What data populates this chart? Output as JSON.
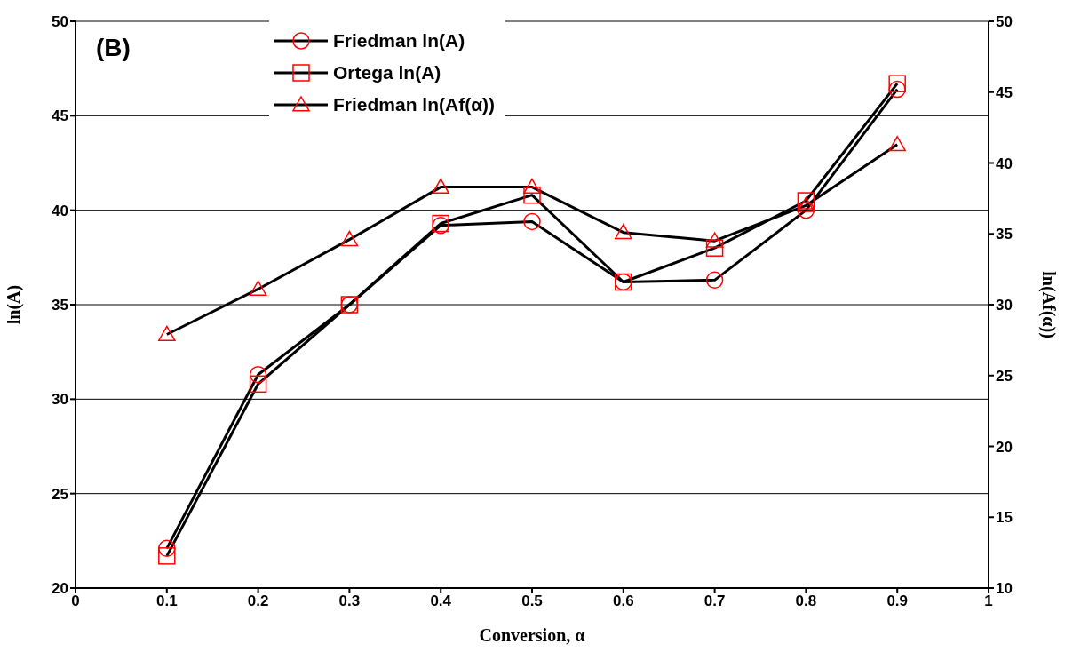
{
  "chart_data": {
    "type": "line",
    "xlabel": "Conversion, α",
    "ylabel": "ln(A)",
    "y2label": "ln(Af(α))",
    "annotations": [
      "(B)"
    ],
    "x": [
      0.1,
      0.2,
      0.3,
      0.4,
      0.5,
      0.6,
      0.7,
      0.8,
      0.9
    ],
    "series": [
      {
        "name": "Friedman ln(A)",
        "color": "#ff0000",
        "marker": "circle",
        "values": [
          22.1,
          31.3,
          35.0,
          39.2,
          39.4,
          36.2,
          36.3,
          40.0,
          46.4
        ]
      },
      {
        "name": "Ortega ln(A)",
        "color": "#ff0000",
        "marker": "square",
        "values": [
          21.7,
          30.8,
          35.0,
          39.3,
          40.8,
          36.2,
          38.0,
          40.5,
          46.7
        ]
      },
      {
        "name": "Friedman ln(Af(α))",
        "color": "#ff0000",
        "marker": "triangle",
        "axis": "y2",
        "values": [
          27.9,
          31.1,
          34.6,
          38.3,
          38.3,
          35.1,
          34.5,
          37.0,
          41.3
        ]
      }
    ],
    "xlim": [
      0,
      1
    ],
    "xticks": [
      0,
      0.1,
      0.2,
      0.3,
      0.4,
      0.5,
      0.6,
      0.7,
      0.8,
      0.9,
      1
    ],
    "ylim": [
      20,
      50
    ],
    "yticks": [
      20,
      25,
      30,
      35,
      40,
      45,
      50
    ],
    "y2lim": [
      10,
      50
    ],
    "y2ticks": [
      10,
      15,
      20,
      25,
      30,
      35,
      40,
      45,
      50
    ],
    "grid": "y",
    "legend": "top",
    "line_style": "solid"
  }
}
